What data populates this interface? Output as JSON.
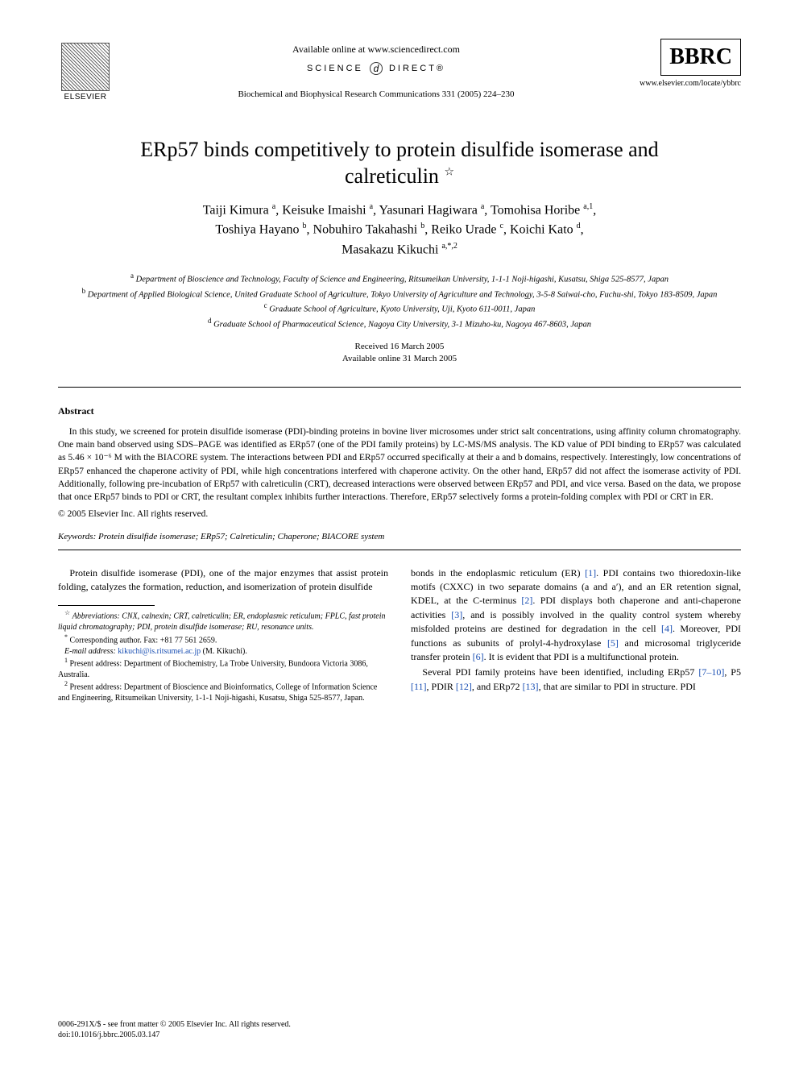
{
  "header": {
    "elsevier": "ELSEVIER",
    "available_online": "Available online at www.sciencedirect.com",
    "science_direct": "SCIENCE",
    "science_direct2": "DIRECT®",
    "journal_ref": "Biochemical and Biophysical Research Communications 331 (2005) 224–230",
    "bbrc": "BBRC",
    "locate": "www.elsevier.com/locate/ybbrc"
  },
  "title": "ERp57 binds competitively to protein disulfide isomerase and calreticulin",
  "title_note": "☆",
  "authors_html": "Taiji Kimura <sup>a</sup>, Keisuke Imaishi <sup>a</sup>, Yasunari Hagiwara <sup>a</sup>, Tomohisa Horibe <sup>a,1</sup>, Toshiya Hayano <sup>b</sup>, Nobuhiro Takahashi <sup>b</sup>, Reiko Urade <sup>c</sup>, Koichi Kato <sup>d</sup>, Masakazu Kikuchi <sup>a,*,2</sup>",
  "affiliations": {
    "a": "Department of Bioscience and Technology, Faculty of Science and Engineering, Ritsumeikan University, 1-1-1 Noji-higashi, Kusatsu, Shiga 525-8577, Japan",
    "b": "Department of Applied Biological Science, United Graduate School of Agriculture, Tokyo University of Agriculture and Technology, 3-5-8 Saiwai-cho, Fuchu-shi, Tokyo 183-8509, Japan",
    "c": "Graduate School of Agriculture, Kyoto University, Uji, Kyoto 611-0011, Japan",
    "d": "Graduate School of Pharmaceutical Science, Nagoya City University, 3-1 Mizuho-ku, Nagoya 467-8603, Japan"
  },
  "dates": {
    "received": "Received 16 March 2005",
    "online": "Available online 31 March 2005"
  },
  "abstract": {
    "heading": "Abstract",
    "body": "In this study, we screened for protein disulfide isomerase (PDI)-binding proteins in bovine liver microsomes under strict salt concentrations, using affinity column chromatography. One main band observed using SDS–PAGE was identified as ERp57 (one of the PDI family proteins) by LC-MS/MS analysis. The KD value of PDI binding to ERp57 was calculated as 5.46 × 10⁻⁶ M with the BIACORE system. The interactions between PDI and ERp57 occurred specifically at their a and b domains, respectively. Interestingly, low concentrations of ERp57 enhanced the chaperone activity of PDI, while high concentrations interfered with chaperone activity. On the other hand, ERp57 did not affect the isomerase activity of PDI. Additionally, following pre-incubation of ERp57 with calreticulin (CRT), decreased interactions were observed between ERp57 and PDI, and vice versa. Based on the data, we propose that once ERp57 binds to PDI or CRT, the resultant complex inhibits further interactions. Therefore, ERp57 selectively forms a protein-folding complex with PDI or CRT in ER.",
    "copyright": "© 2005 Elsevier Inc. All rights reserved."
  },
  "keywords": {
    "label": "Keywords:",
    "list": "Protein disulfide isomerase; ERp57; Calreticulin; Chaperone; BIACORE system"
  },
  "body": {
    "left_p1": "Protein disulfide isomerase (PDI), one of the major enzymes that assist protein folding, catalyzes the formation, reduction, and isomerization of protein disulfide",
    "right_p1": "bonds in the endoplasmic reticulum (ER) [1]. PDI contains two thioredoxin-like motifs (CXXC) in two separate domains (a and a′), and an ER retention signal, KDEL, at the C-terminus [2]. PDI displays both chaperone and anti-chaperone activities [3], and is possibly involved in the quality control system whereby misfolded proteins are destined for degradation in the cell [4]. Moreover, PDI functions as subunits of prolyl-4-hydroxylase [5] and microsomal triglyceride transfer protein [6]. It is evident that PDI is a multifunctional protein.",
    "right_p2": "Several PDI family proteins have been identified, including ERp57 [7–10], P5 [11], PDIR [12], and ERp72 [13], that are similar to PDI in structure. PDI"
  },
  "footnotes": {
    "abbrev": "Abbreviations: CNX, calnexin; CRT, calreticulin; ER, endoplasmic reticulum; FPLC, fast protein liquid chromatography; PDI, protein disulfide isomerase; RU, resonance units.",
    "corr": "Corresponding author. Fax: +81 77 561 2659.",
    "email_label": "E-mail address:",
    "email": "kikuchi@is.ritsumei.ac.jp",
    "email_tail": "(M. Kikuchi).",
    "n1": "Present address: Department of Biochemistry, La Trobe University, Bundoora Victoria 3086, Australia.",
    "n2": "Present address: Department of Bioscience and Bioinformatics, College of Information Science and Engineering, Ritsumeikan University, 1-1-1 Noji-higashi, Kusatsu, Shiga 525-8577, Japan."
  },
  "footer": {
    "line1": "0006-291X/$ - see front matter © 2005 Elsevier Inc. All rights reserved.",
    "line2": "doi:10.1016/j.bbrc.2005.03.147"
  },
  "colors": {
    "link": "#1a4fb3",
    "text": "#000000",
    "bg": "#ffffff"
  }
}
